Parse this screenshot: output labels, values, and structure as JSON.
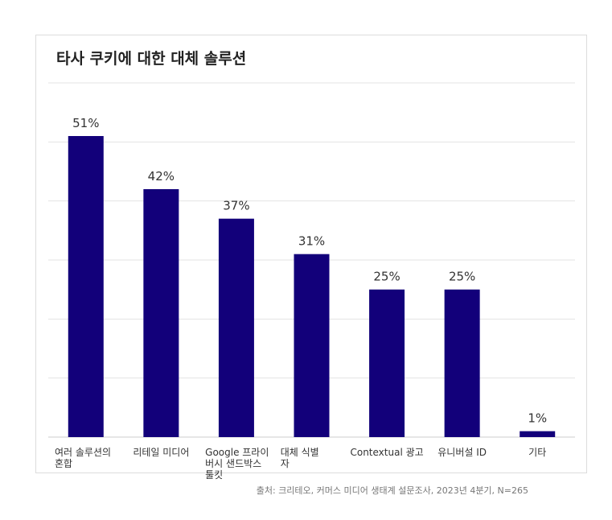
{
  "chart_data": {
    "type": "bar",
    "title": "타사 쿠키에 대한 대체 솔루션",
    "categories": [
      [
        "여러 솔루션의",
        "혼합"
      ],
      [
        "리테일 미디어"
      ],
      [
        "Google 프라이",
        "버시 샌드박스",
        "툴킷"
      ],
      [
        "대체 식별",
        "자"
      ],
      [
        "Contextual 광고"
      ],
      [
        "유니버설 ID"
      ],
      [
        "기타"
      ]
    ],
    "values": [
      51,
      42,
      37,
      31,
      25,
      25,
      1
    ],
    "value_labels": [
      "51%",
      "42%",
      "37%",
      "31%",
      "25%",
      "25%",
      "1%"
    ],
    "ylim": [
      0,
      60
    ],
    "grid": true,
    "bar_color": "#12007a",
    "source": "출처: 크리테오, 커머스 미디어 생태계 설문조사, 2023년 4분기, N=265"
  }
}
